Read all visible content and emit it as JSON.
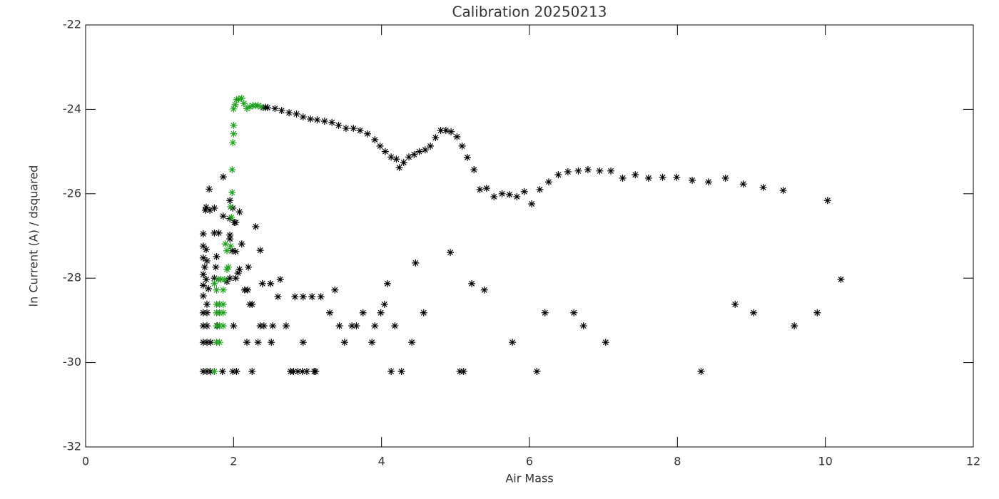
{
  "chart_data": {
    "type": "scatter",
    "title": "Calibration 20250213",
    "x_label": "Air Mass",
    "y_label": "ln Current (A) / dsquared",
    "xlim": [
      0,
      12
    ],
    "xticks": [
      0,
      2,
      4,
      6,
      8,
      10,
      12
    ],
    "ylim": [
      -32,
      -22
    ],
    "yticks": [
      -32,
      -30,
      -28,
      -26,
      -24,
      -22
    ],
    "marker": "asterisk",
    "series": [
      {
        "color": "#000000",
        "x": [
          2.4,
          2.43,
          2.46,
          2.56,
          2.65,
          2.75,
          2.85,
          2.94,
          3.04,
          3.13,
          3.23,
          3.33,
          3.42,
          3.52,
          3.62,
          3.71,
          3.81,
          3.91,
          3.98,
          4.05,
          4.13,
          4.2,
          4.24,
          4.3,
          4.37,
          4.44,
          4.51,
          4.59,
          4.66,
          4.73,
          4.8,
          4.87,
          4.94,
          5.02,
          5.09,
          5.16,
          5.25,
          5.33,
          5.42,
          5.52,
          5.63,
          5.73,
          5.83,
          5.93,
          6.03,
          6.14,
          6.26,
          6.39,
          6.52,
          6.66,
          6.79,
          6.95,
          7.1,
          7.26,
          7.43,
          7.61,
          7.8,
          7.99,
          8.2,
          8.42,
          8.65,
          8.89,
          9.16,
          9.43,
          10.03,
          1.86,
          1.67,
          1.68,
          1.63,
          1.62,
          1.74,
          1.95,
          1.99,
          2.08,
          1.95,
          1.86,
          2.03,
          2.01,
          1.8,
          1.95,
          1.95,
          1.98,
          2.03,
          2.11,
          2.3,
          2.36,
          2.06,
          2.08,
          2.2,
          2.03,
          1.95,
          1.91,
          2.15,
          2.19,
          2.22,
          2.25,
          2.39,
          2.5,
          2.6,
          2.63,
          2.71,
          2.41,
          2.36,
          2.53,
          2.83,
          2.94,
          3.06,
          3.18,
          3.3,
          3.37,
          3.43,
          3.6,
          3.66,
          3.5,
          3.87,
          3.75,
          3.91,
          3.99,
          4.04,
          4.08,
          4.18,
          4.41,
          4.46,
          4.57,
          4.93,
          5.22,
          5.39,
          5.77,
          6.21,
          6.6,
          6.73,
          7.03,
          8.78,
          9.03,
          9.58,
          9.89,
          10.21,
          4.13,
          4.27,
          5.11,
          5.06,
          6.1,
          8.32,
          3.09,
          2.77,
          2.81,
          2.87,
          2.93,
          2.99,
          3.11,
          2.25,
          2.04,
          1.99,
          1.85,
          2.18,
          2.33,
          2.51,
          2.94,
          2.0,
          1.78,
          1.59,
          1.59,
          1.63,
          1.59,
          1.64,
          1.61,
          1.59,
          1.63,
          1.59,
          1.66,
          1.59,
          1.64,
          1.59,
          1.64,
          1.59,
          1.64,
          1.59,
          1.64,
          1.69,
          1.59,
          1.64,
          1.69,
          1.74,
          1.76,
          1.77,
          1.74
        ],
        "values": [
          -23.96,
          -23.95,
          -23.96,
          -23.98,
          -24.03,
          -24.08,
          -24.11,
          -24.18,
          -24.23,
          -24.25,
          -24.28,
          -24.31,
          -24.38,
          -24.45,
          -24.45,
          -24.5,
          -24.58,
          -24.72,
          -24.87,
          -25.0,
          -25.13,
          -25.18,
          -25.38,
          -25.26,
          -25.13,
          -25.07,
          -25.0,
          -24.96,
          -24.87,
          -24.67,
          -24.5,
          -24.5,
          -24.53,
          -24.65,
          -24.87,
          -25.14,
          -25.43,
          -25.9,
          -25.87,
          -26.07,
          -26.0,
          -26.02,
          -26.07,
          -25.95,
          -26.24,
          -25.9,
          -25.72,
          -25.55,
          -25.48,
          -25.46,
          -25.43,
          -25.46,
          -25.46,
          -25.63,
          -25.55,
          -25.63,
          -25.61,
          -25.61,
          -25.68,
          -25.72,
          -25.63,
          -25.77,
          -25.85,
          -25.92,
          -26.16,
          -25.6,
          -25.89,
          -26.39,
          -26.32,
          -26.39,
          -26.34,
          -26.16,
          -26.34,
          -26.43,
          -26.59,
          -26.53,
          -26.68,
          -26.68,
          -26.93,
          -27.07,
          -26.98,
          -27.35,
          -27.37,
          -27.19,
          -26.78,
          -27.34,
          -27.88,
          -27.79,
          -27.74,
          -28.0,
          -28.0,
          -28.08,
          -28.28,
          -28.28,
          -28.62,
          -28.62,
          -28.13,
          -28.13,
          -28.44,
          -28.03,
          -29.13,
          -29.13,
          -29.13,
          -29.13,
          -28.44,
          -28.44,
          -28.44,
          -28.44,
          -28.82,
          -28.28,
          -29.13,
          -29.13,
          -29.13,
          -29.52,
          -29.52,
          -28.82,
          -29.13,
          -28.82,
          -28.62,
          -28.13,
          -29.13,
          -29.52,
          -27.64,
          -28.82,
          -27.39,
          -28.13,
          -28.28,
          -29.52,
          -28.82,
          -28.82,
          -29.13,
          -29.52,
          -28.62,
          -28.82,
          -29.13,
          -28.82,
          -28.03,
          -30.21,
          -30.21,
          -30.21,
          -30.21,
          -30.21,
          -30.21,
          -30.21,
          -30.21,
          -30.21,
          -30.21,
          -30.21,
          -30.21,
          -30.21,
          -30.21,
          -30.21,
          -30.21,
          -30.21,
          -29.52,
          -29.52,
          -29.52,
          -29.52,
          -29.13,
          -29.13,
          -26.95,
          -27.24,
          -27.32,
          -27.52,
          -27.59,
          -27.74,
          -27.91,
          -28.03,
          -28.17,
          -28.25,
          -28.42,
          -28.62,
          -28.82,
          -28.82,
          -29.13,
          -29.13,
          -29.52,
          -29.52,
          -29.52,
          -30.21,
          -30.21,
          -30.21,
          -26.93,
          -27.74,
          -27.49,
          -28.0
        ]
      },
      {
        "color": "#1fa01f",
        "x": [
          1.74,
          1.77,
          1.81,
          1.77,
          1.81,
          1.86,
          1.77,
          1.81,
          1.86,
          1.77,
          1.81,
          1.86,
          1.77,
          1.86,
          1.74,
          1.79,
          1.83,
          1.88,
          1.91,
          1.93,
          1.91,
          1.89,
          1.96,
          1.97,
          1.96,
          1.98,
          1.98,
          1.99,
          2.0,
          2.0,
          2.0,
          2.02,
          2.04,
          2.07,
          2.11,
          2.14,
          2.18,
          2.22,
          2.26,
          2.3,
          2.33,
          2.37
        ],
        "values": [
          -30.21,
          -29.52,
          -29.52,
          -29.13,
          -29.13,
          -29.13,
          -28.82,
          -28.82,
          -28.82,
          -28.62,
          -28.62,
          -28.62,
          -28.28,
          -28.28,
          -28.13,
          -28.03,
          -28.03,
          -28.03,
          -27.79,
          -27.74,
          -27.35,
          -27.19,
          -27.24,
          -26.56,
          -26.31,
          -25.97,
          -25.43,
          -24.79,
          -24.58,
          -24.38,
          -23.99,
          -23.89,
          -23.77,
          -23.76,
          -23.74,
          -23.86,
          -23.98,
          -23.94,
          -23.91,
          -23.91,
          -23.91,
          -23.94
        ]
      }
    ]
  }
}
